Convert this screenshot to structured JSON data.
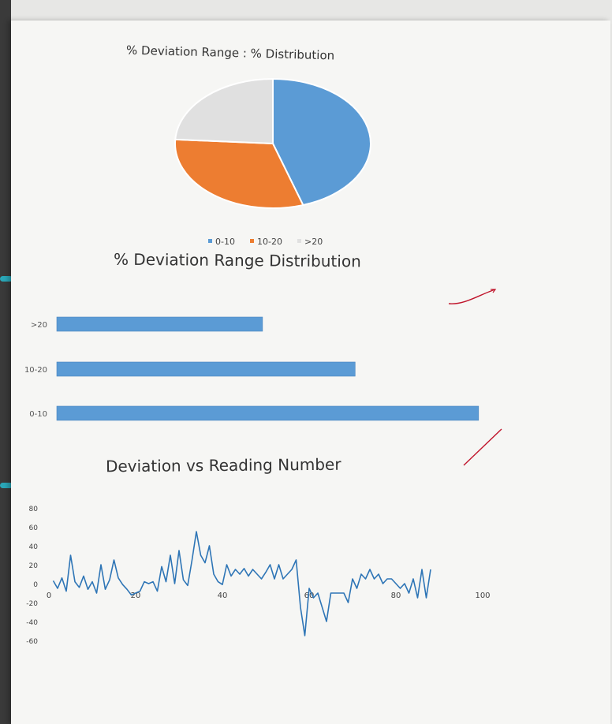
{
  "chart_data": [
    {
      "type": "pie",
      "title": "% Deviation Range : % Distribution",
      "slices": [
        {
          "label": "0-10",
          "value": 45,
          "color": "#5b9bd5"
        },
        {
          "label": "10-20",
          "value": 31,
          "color": "#ed7d31"
        },
        {
          "label": ">20",
          "value": 24,
          "color": "#e0e0e0"
        }
      ],
      "legend_position": "bottom"
    },
    {
      "type": "bar",
      "orientation": "horizontal",
      "title": "% Deviation Range Distribution",
      "categories": [
        ">20",
        "10-20",
        "0-10"
      ],
      "values": [
        20,
        29,
        41
      ],
      "xlim": [
        0,
        45
      ],
      "x_ticks": [
        "0",
        "5",
        "10",
        "15",
        "20",
        "25",
        "30",
        "35",
        "40",
        "45"
      ],
      "color": "#5b9bd5",
      "grid": false
    },
    {
      "type": "line",
      "title": "Deviation vs Reading Number",
      "y": [
        3,
        -5,
        6,
        -8,
        30,
        2,
        -4,
        8,
        -6,
        2,
        -10,
        20,
        -6,
        4,
        25,
        6,
        -1,
        -6,
        -12,
        -10,
        -8,
        2,
        0,
        2,
        -8,
        18,
        2,
        30,
        0,
        35,
        4,
        -2,
        25,
        55,
        30,
        22,
        40,
        10,
        2,
        -1,
        20,
        8,
        15,
        10,
        16,
        8,
        15,
        10,
        5,
        12,
        20,
        5,
        20,
        5,
        10,
        15,
        25,
        -25,
        -55,
        -5,
        -15,
        -10,
        -25,
        -40,
        -10,
        -10,
        -10,
        -10,
        -20,
        5,
        -5,
        10,
        5,
        15,
        5,
        10,
        0,
        5,
        5,
        0,
        -5,
        0,
        -10,
        5,
        -15,
        15,
        -15,
        15
      ],
      "xlim": [
        0,
        100
      ],
      "ylim": [
        -80,
        80
      ],
      "x_ticks": [
        "0",
        "20",
        "40",
        "60",
        "80",
        "100"
      ],
      "y_ticks": [
        "80",
        "60",
        "40",
        "20",
        "0",
        "-20",
        "-40",
        "-60",
        "-80"
      ],
      "color": "#2e75b6"
    }
  ],
  "annotations": {
    "checkmark_color": "#c0142b"
  }
}
